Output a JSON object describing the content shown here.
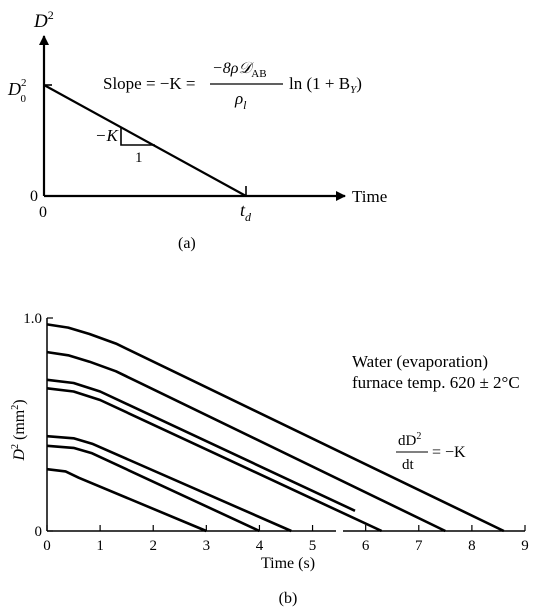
{
  "chart_data": [
    {
      "type": "line",
      "panel_label": "(a)",
      "ylabel": "D",
      "ylabel_sup": "2",
      "xlabel": "Time",
      "y0_label": "D",
      "y0_sub": "0",
      "y0_sup": "2",
      "origin_y_tick": "0",
      "origin_x_tick": "0",
      "td_label": "t",
      "td_sub": "d",
      "minus_k_label": "−K",
      "run_label": "1",
      "slope_text": {
        "lhs": "Slope = −K =",
        "numerator": "−8ρ𝒟",
        "numerator_sub": "AB",
        "denominator": "ρ",
        "denominator_sub": "l",
        "rhs": "ln (1 + B",
        "rhs_sub": "Y",
        "rhs_end": ")"
      },
      "series": [
        {
          "points": [
            [
              0,
              1.0
            ],
            [
              1.0,
              0.0
            ]
          ]
        }
      ]
    },
    {
      "type": "line",
      "panel_label": "(b)",
      "xlabel": "Time (s)",
      "ylabel_main": "D",
      "ylabel_sup": "2",
      "ylabel_rest": " (mm",
      "ylabel_sup2": "2",
      "ylabel_end": ")",
      "xlim": [
        0,
        9
      ],
      "ylim": [
        0,
        1.0
      ],
      "xticks": [
        "0",
        "1",
        "2",
        "3",
        "4",
        "5",
        "6",
        "7",
        "8",
        "9"
      ],
      "yticks": [
        {
          "value": 0,
          "label": "0"
        },
        {
          "value": 1.0,
          "label": "1.0"
        }
      ],
      "annotation_line1": "Water (evaporation)",
      "annotation_line2": "furnace temp. 620 ± 2°C",
      "rate_numerator": "dD",
      "rate_numerator_sup": "2",
      "rate_denominator": "dt",
      "rate_rhs": "= −K",
      "series": [
        {
          "points": [
            [
              0,
              0.97
            ],
            [
              0.4,
              0.955
            ],
            [
              0.8,
              0.925
            ],
            [
              1.3,
              0.88
            ],
            [
              8.6,
              0.0
            ]
          ]
        },
        {
          "points": [
            [
              0,
              0.84
            ],
            [
              0.4,
              0.825
            ],
            [
              0.8,
              0.795
            ],
            [
              1.3,
              0.75
            ],
            [
              7.5,
              0.0
            ]
          ]
        },
        {
          "points": [
            [
              0,
              0.71
            ],
            [
              0.5,
              0.695
            ],
            [
              1.0,
              0.655
            ],
            [
              5.8,
              0.095
            ]
          ]
        },
        {
          "points": [
            [
              0,
              0.67
            ],
            [
              0.5,
              0.655
            ],
            [
              1.0,
              0.615
            ],
            [
              6.3,
              0.0
            ]
          ]
        },
        {
          "points": [
            [
              0,
              0.445
            ],
            [
              0.5,
              0.435
            ],
            [
              0.85,
              0.41
            ],
            [
              4.6,
              0.0
            ]
          ]
        },
        {
          "points": [
            [
              0,
              0.4
            ],
            [
              0.5,
              0.39
            ],
            [
              0.85,
              0.365
            ],
            [
              4.0,
              0.0
            ]
          ]
        },
        {
          "points": [
            [
              0,
              0.29
            ],
            [
              0.35,
              0.28
            ],
            [
              0.6,
              0.25
            ],
            [
              3.0,
              0.0
            ]
          ]
        }
      ]
    }
  ]
}
